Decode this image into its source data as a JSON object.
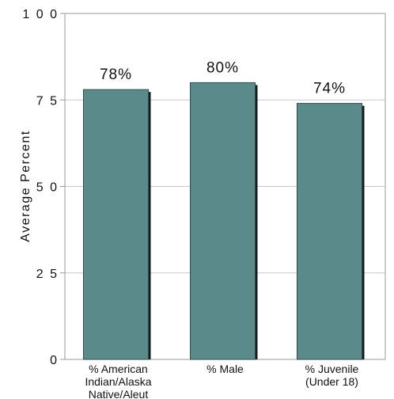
{
  "chart_data": {
    "type": "bar",
    "ylabel": "Average Percent",
    "xlabel": "",
    "ylim": [
      0,
      100
    ],
    "yticks": [
      {
        "value": 0,
        "label": "0"
      },
      {
        "value": 25,
        "label": "2 5"
      },
      {
        "value": 50,
        "label": "5 0"
      },
      {
        "value": 75,
        "label": "7 5"
      },
      {
        "value": 100,
        "label": "1 0 0"
      }
    ],
    "grid": true,
    "categories": [
      [
        "% American",
        "Indian/Alaska",
        "Native/Aleut"
      ],
      [
        "% Male"
      ],
      [
        "% Juvenile",
        "(Under 18)"
      ]
    ],
    "values": [
      78,
      80,
      74
    ],
    "data_labels": [
      "78%",
      "80%",
      "74%"
    ],
    "colors": {
      "bar": "#5a8a8a",
      "bar_edge": "#2f4f4f",
      "shadow": "#1a1a1a",
      "grid": "#c8c8c8",
      "axis": "#9a9a9a"
    }
  }
}
